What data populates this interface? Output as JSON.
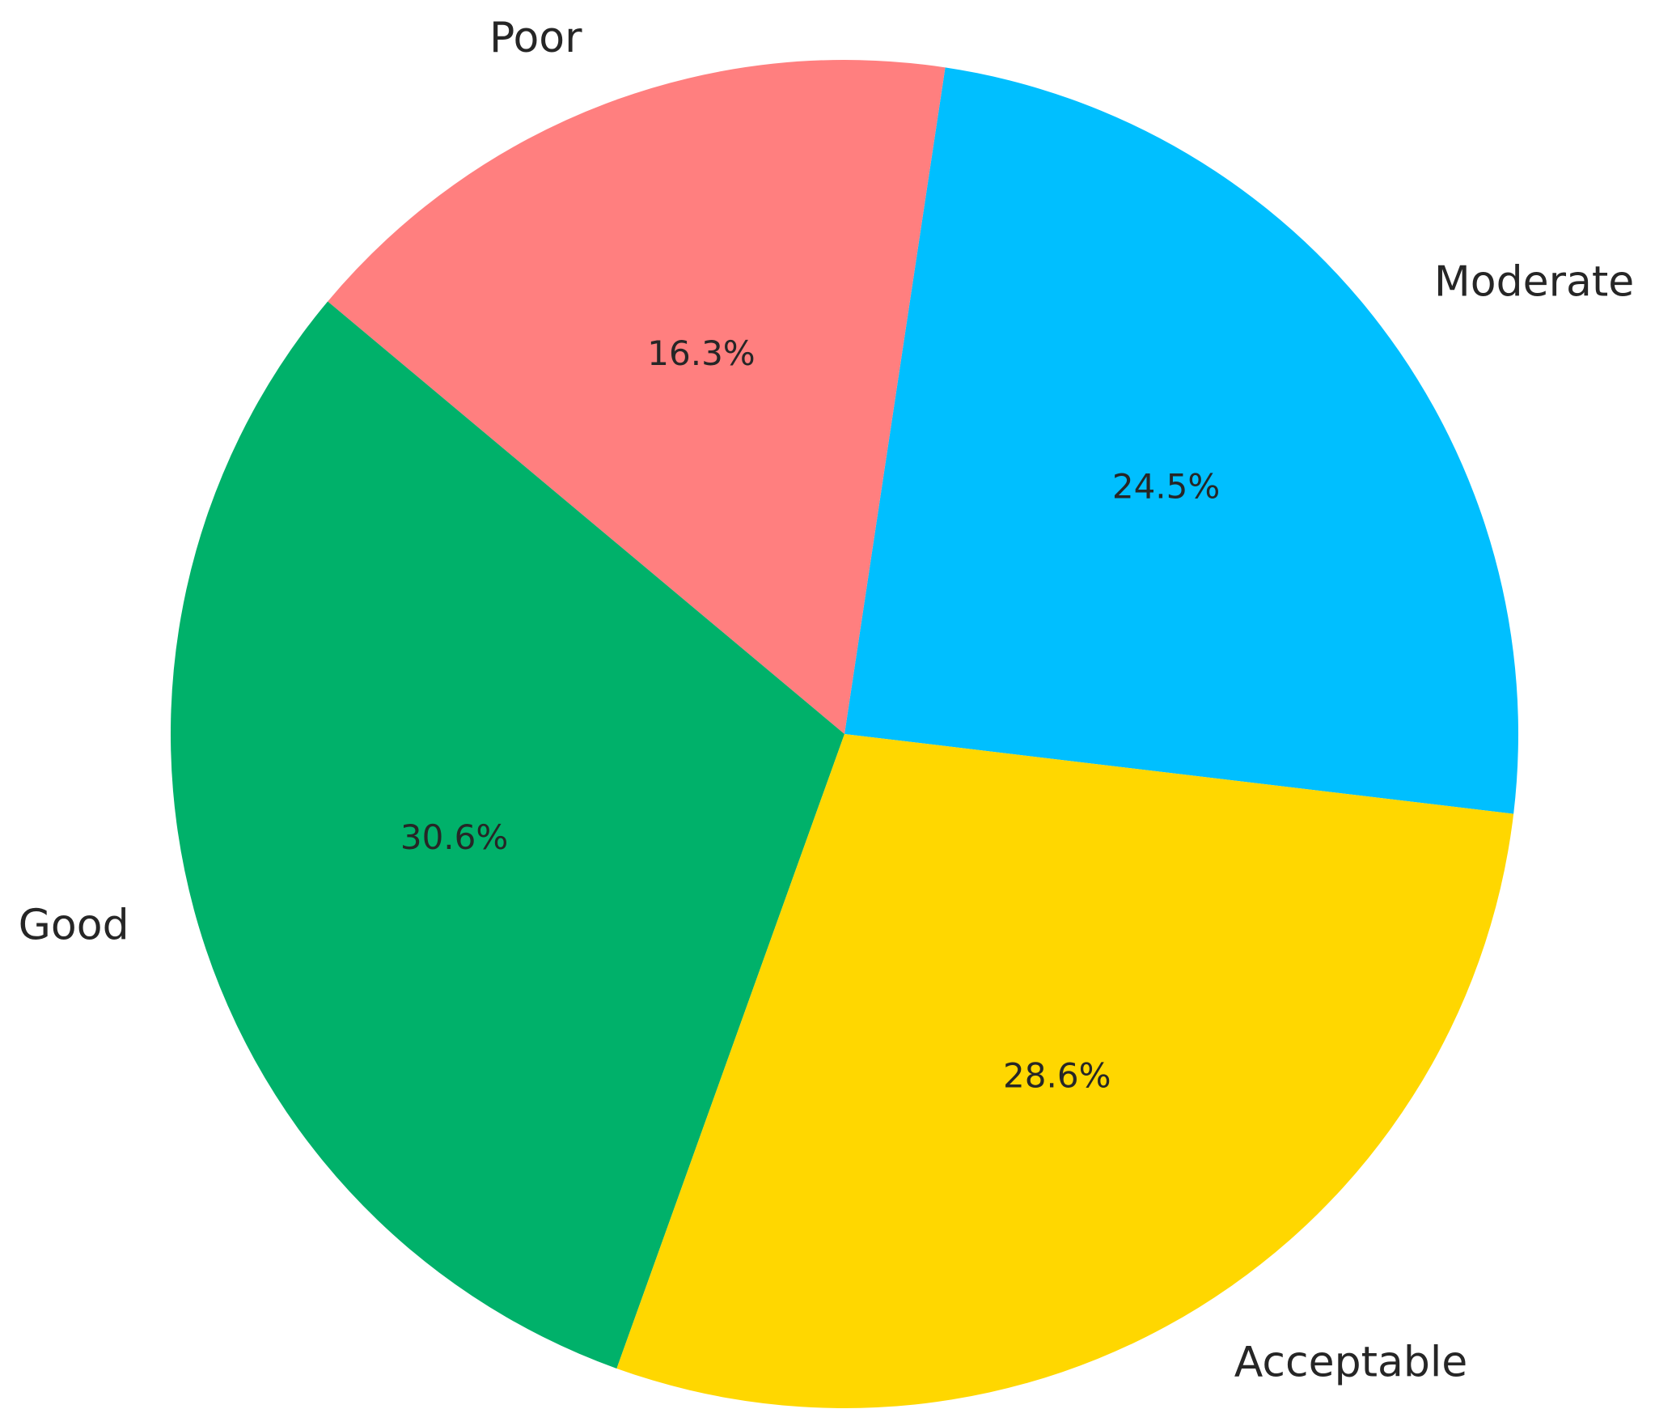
{
  "chart_data": {
    "type": "pie",
    "categories": [
      "Moderate",
      "Poor",
      "Good",
      "Acceptable"
    ],
    "values": [
      24.5,
      16.3,
      30.6,
      28.6
    ],
    "value_labels": [
      "24.5%",
      "16.3%",
      "30.6%",
      "28.6%"
    ],
    "colors": [
      "#00bfff",
      "#ff7f7f",
      "#00b16a",
      "#ffd700"
    ]
  }
}
